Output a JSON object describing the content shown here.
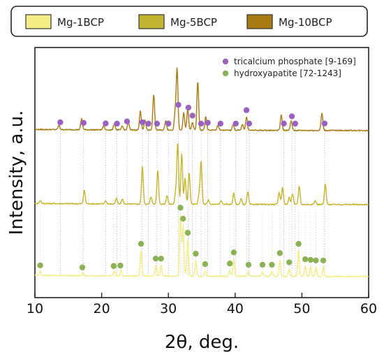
{
  "chart_data": {
    "type": "line",
    "xlabel": "2θ, deg.",
    "ylabel": "Intensity, a.u.",
    "xlim": [
      10,
      60
    ],
    "xticks": [
      "10",
      "20",
      "30",
      "40",
      "50",
      "60"
    ],
    "y_ticks_shown": false,
    "legend": {
      "placement": "top",
      "boxed": true
    },
    "series": [
      {
        "name": "Mg-1BCP",
        "color": "#f3ee86",
        "offset": 0.0,
        "peaks": [
          [
            10.8,
            0.07
          ],
          [
            17.2,
            0.05
          ],
          [
            21.9,
            0.08
          ],
          [
            22.9,
            0.09
          ],
          [
            25.9,
            0.42
          ],
          [
            28.1,
            0.18
          ],
          [
            28.9,
            0.18
          ],
          [
            31.8,
            1.0
          ],
          [
            32.2,
            0.82
          ],
          [
            32.9,
            0.6
          ],
          [
            34.1,
            0.26
          ],
          [
            35.5,
            0.09
          ],
          [
            39.2,
            0.1
          ],
          [
            39.8,
            0.28
          ],
          [
            42.0,
            0.08
          ],
          [
            44.1,
            0.08
          ],
          [
            45.5,
            0.08
          ],
          [
            46.7,
            0.27
          ],
          [
            48.1,
            0.12
          ],
          [
            49.5,
            0.42
          ],
          [
            50.5,
            0.17
          ],
          [
            51.3,
            0.16
          ],
          [
            52.1,
            0.15
          ],
          [
            53.2,
            0.15
          ]
        ]
      },
      {
        "name": "Mg-5BCP",
        "color": "#c4b530",
        "offset": 1.0,
        "peaks": [
          [
            10.8,
            0.05
          ],
          [
            17.4,
            0.22
          ],
          [
            20.6,
            0.05
          ],
          [
            22.2,
            0.09
          ],
          [
            23.1,
            0.08
          ],
          [
            26.1,
            0.62
          ],
          [
            27.4,
            0.12
          ],
          [
            28.4,
            0.55
          ],
          [
            29.8,
            0.14
          ],
          [
            31.1,
            0.2
          ],
          [
            31.4,
            1.0
          ],
          [
            32.0,
            0.82
          ],
          [
            32.5,
            0.42
          ],
          [
            33.1,
            0.52
          ],
          [
            34.6,
            0.16
          ],
          [
            34.9,
            0.7
          ],
          [
            36.0,
            0.07
          ],
          [
            37.9,
            0.06
          ],
          [
            39.8,
            0.18
          ],
          [
            40.9,
            0.09
          ],
          [
            41.9,
            0.2
          ],
          [
            46.6,
            0.2
          ],
          [
            47.1,
            0.28
          ],
          [
            48.1,
            0.12
          ],
          [
            48.6,
            0.18
          ],
          [
            49.6,
            0.3
          ],
          [
            52.0,
            0.06
          ],
          [
            53.5,
            0.33
          ]
        ]
      },
      {
        "name": "Mg-10BCP",
        "color": "#a87b12",
        "offset": 2.0,
        "peaks": [
          [
            13.6,
            0.07
          ],
          [
            17.0,
            0.18
          ],
          [
            20.3,
            0.06
          ],
          [
            21.9,
            0.1
          ],
          [
            23.1,
            0.06
          ],
          [
            24.0,
            0.12
          ],
          [
            25.8,
            0.32
          ],
          [
            26.5,
            0.16
          ],
          [
            27.8,
            0.58
          ],
          [
            29.6,
            0.16
          ],
          [
            31.0,
            0.28
          ],
          [
            31.3,
            1.0
          ],
          [
            32.3,
            0.28
          ],
          [
            32.9,
            0.35
          ],
          [
            33.6,
            0.13
          ],
          [
            34.4,
            0.8
          ],
          [
            35.6,
            0.22
          ],
          [
            37.4,
            0.08
          ],
          [
            39.7,
            0.1
          ],
          [
            41.1,
            0.1
          ],
          [
            41.7,
            0.22
          ],
          [
            46.9,
            0.25
          ],
          [
            48.4,
            0.16
          ],
          [
            53.0,
            0.28
          ]
        ]
      }
    ],
    "markers": [
      {
        "name": "tricalcium phosphate [9-169]",
        "color": "#9a62c0",
        "positions": [
          13.8,
          17.3,
          20.6,
          22.3,
          23.8,
          26.1,
          27.0,
          28.3,
          30.0,
          31.5,
          33.0,
          33.6,
          34.9,
          35.9,
          37.8,
          40.1,
          41.7,
          42.1,
          47.3,
          48.5,
          49.0,
          53.4
        ]
      },
      {
        "name": "hydroxyapatite [72-1243]",
        "color": "#8db255",
        "positions": [
          10.8,
          17.1,
          21.8,
          22.8,
          25.9,
          28.1,
          28.9,
          31.8,
          32.2,
          32.9,
          34.1,
          35.5,
          39.2,
          39.8,
          42.0,
          44.1,
          45.5,
          46.7,
          48.1,
          49.5,
          50.5,
          51.3,
          52.1,
          53.2
        ]
      }
    ]
  }
}
